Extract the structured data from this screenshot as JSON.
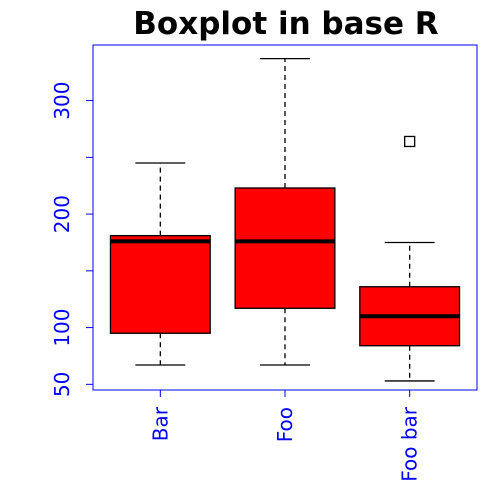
{
  "chart_data": {
    "type": "boxplot",
    "title": "Boxplot in base R",
    "xlabel": "",
    "ylabel": "",
    "ylim": [
      45,
      349
    ],
    "yticks": [
      50,
      100,
      200,
      300
    ],
    "ytick_marks": [
      50,
      100,
      150,
      200,
      250,
      300
    ],
    "categories": [
      "Bar",
      "Foo",
      "Foo bar"
    ],
    "boxes": [
      {
        "category": "Bar",
        "whisker_low": 67,
        "q1": 95,
        "median": 176,
        "q3": 181,
        "whisker_high": 245,
        "outliers": []
      },
      {
        "category": "Foo",
        "whisker_low": 67,
        "q1": 117,
        "median": 176,
        "q3": 223,
        "whisker_high": 337,
        "outliers": []
      },
      {
        "category": "Foo bar",
        "whisker_low": 53,
        "q1": 84,
        "median": 110,
        "q3": 136,
        "whisker_high": 175,
        "outliers": [
          264
        ]
      }
    ],
    "box_color": "#ff0000",
    "axis_color": "#0000ff",
    "title_color": "#0000ff",
    "grid": false,
    "legend": "none"
  }
}
